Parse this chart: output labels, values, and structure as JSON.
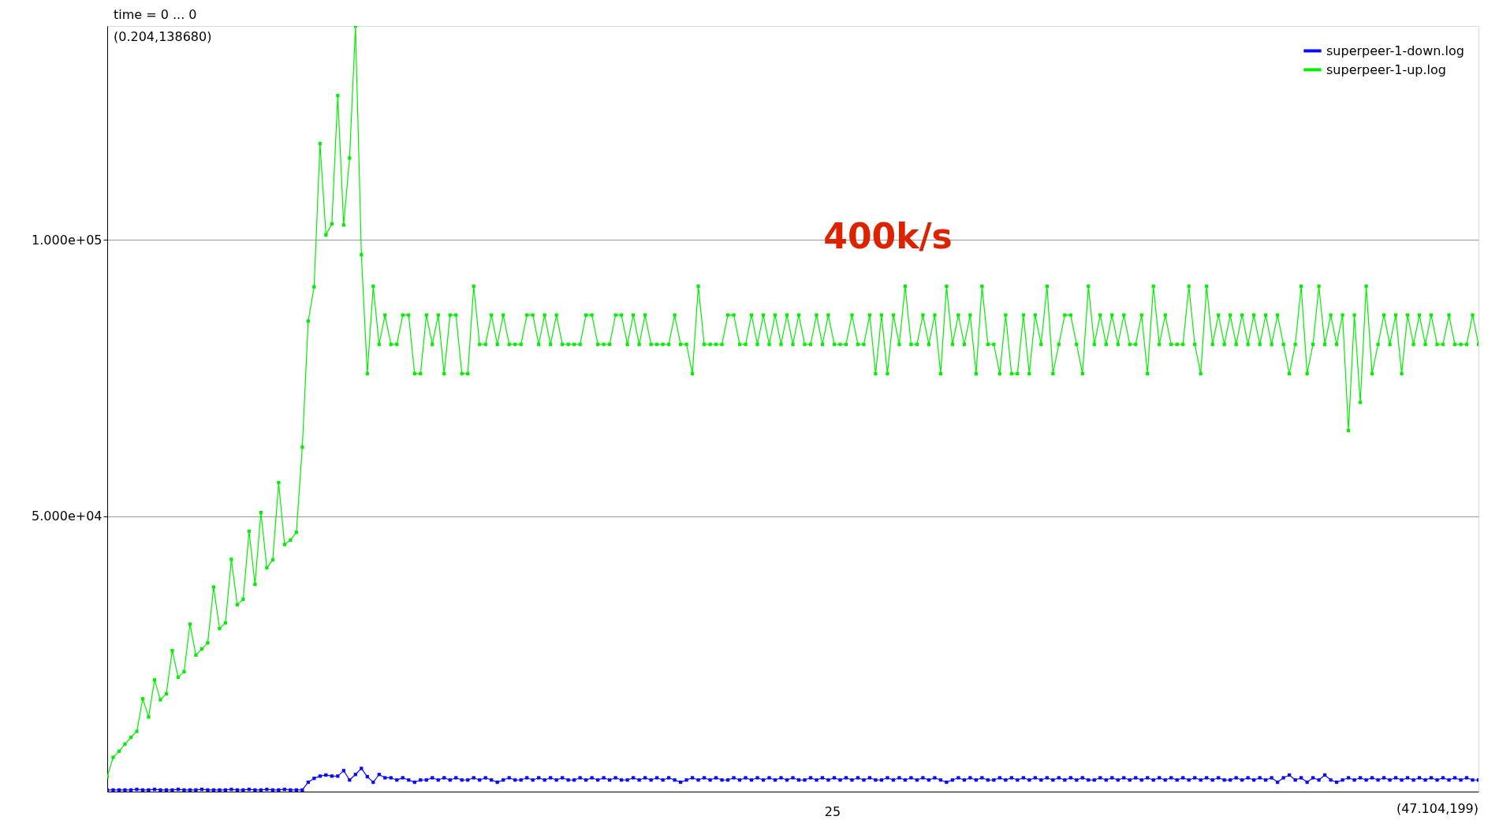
{
  "chart_data": {
    "type": "line",
    "annotations": [
      "time = 0 ... 0",
      "(0.204,138680)",
      "(47.104,199)",
      "400k/s",
      "25"
    ],
    "ylim": [
      199,
      138680
    ],
    "yticks": [
      {
        "value": 50000,
        "label": "5.000e+04"
      },
      {
        "value": 100000,
        "label": "1.000e+05"
      }
    ],
    "grid": "y",
    "legend": "top right",
    "marker": "square",
    "line_style": "solid",
    "categories": [
      null,
      null,
      null,
      null,
      null,
      null,
      null,
      null,
      null,
      null,
      null,
      null,
      null,
      null,
      null,
      null,
      null,
      null,
      null,
      null,
      null,
      null,
      null,
      null,
      null,
      null,
      null,
      null,
      null,
      null,
      null,
      null,
      null,
      null,
      null,
      null,
      null,
      null,
      null,
      null,
      null,
      null,
      null,
      null,
      null,
      null,
      null,
      null,
      null,
      null,
      null,
      null,
      null,
      null,
      null,
      null,
      null,
      null,
      null,
      null,
      null,
      null,
      null,
      null,
      null,
      null,
      null,
      null,
      null,
      null,
      null,
      null,
      null,
      null,
      null,
      null,
      null,
      null,
      null,
      null,
      null,
      null,
      null,
      null,
      null,
      null,
      null,
      null,
      null,
      null,
      null,
      null,
      null,
      null,
      null,
      null,
      null,
      null,
      null,
      null,
      null,
      null,
      null,
      null,
      null,
      null,
      null,
      null,
      null,
      null,
      null,
      null,
      null,
      null,
      null,
      null,
      null,
      null,
      null,
      null,
      null,
      null,
      null,
      null,
      null,
      null,
      null,
      null,
      null,
      null,
      null,
      null,
      null,
      null,
      null,
      null,
      null,
      null,
      null,
      null,
      null,
      null,
      null,
      null,
      null,
      null,
      null,
      null,
      null,
      null,
      null,
      null,
      null,
      null,
      null,
      null,
      null,
      null,
      null,
      null,
      null,
      null,
      null,
      null,
      null,
      null,
      null,
      null,
      null,
      null,
      null,
      null,
      null,
      null,
      null,
      null,
      null,
      null,
      null,
      null,
      null,
      null,
      null,
      null,
      null,
      null,
      null,
      null,
      null,
      null,
      null,
      null,
      null,
      null,
      null,
      null,
      null,
      null,
      null,
      null,
      null,
      null,
      null,
      null,
      null,
      null,
      null,
      null,
      null,
      null,
      null,
      null,
      null,
      null,
      null,
      null,
      null,
      null,
      null,
      null,
      null,
      null,
      null,
      null,
      null,
      null,
      null,
      null,
      null,
      null,
      null,
      null,
      null
    ],
    "series": [
      {
        "name": "superpeer-1-down.log",
        "color": "#0a0aff",
        "values": [
          500,
          500,
          500,
          500,
          500,
          600,
          500,
          500,
          600,
          500,
          500,
          500,
          600,
          500,
          500,
          500,
          600,
          500,
          500,
          500,
          500,
          600,
          500,
          500,
          600,
          500,
          500,
          600,
          500,
          500,
          600,
          500,
          500,
          500,
          1900,
          2600,
          3000,
          3200,
          3000,
          3000,
          4000,
          2300,
          3300,
          4400,
          2900,
          1900,
          3300,
          2700,
          2700,
          2300,
          2700,
          2300,
          1900,
          2300,
          2300,
          2700,
          2300,
          2700,
          2300,
          2700,
          2300,
          2300,
          2700,
          2300,
          2700,
          2300,
          1900,
          2300,
          2700,
          2300,
          2300,
          2700,
          2300,
          2700,
          2300,
          2700,
          2300,
          2700,
          2300,
          2300,
          2700,
          2300,
          2700,
          2300,
          2700,
          2300,
          2700,
          2300,
          2300,
          2700,
          2300,
          2700,
          2300,
          2700,
          2300,
          2700,
          2300,
          1900,
          2300,
          2700,
          2300,
          2700,
          2300,
          2700,
          2300,
          2300,
          2700,
          2300,
          2700,
          2300,
          2700,
          2300,
          2700,
          2300,
          2700,
          2300,
          2700,
          2300,
          2300,
          2700,
          2300,
          2700,
          2300,
          2700,
          2300,
          2700,
          2300,
          2700,
          2300,
          2700,
          2300,
          2300,
          2700,
          2300,
          2700,
          2300,
          2700,
          2300,
          2700,
          2300,
          2700,
          2300,
          1900,
          2300,
          2700,
          2300,
          2700,
          2300,
          2700,
          2300,
          2300,
          2700,
          2300,
          2700,
          2300,
          2700,
          2300,
          2700,
          2300,
          2700,
          2300,
          2700,
          2300,
          2700,
          2300,
          2700,
          2300,
          2300,
          2700,
          2300,
          2700,
          2300,
          2700,
          2300,
          2700,
          2300,
          2700,
          2300,
          2700,
          2300,
          2700,
          2300,
          2700,
          2300,
          2700,
          2300,
          2700,
          2300,
          2700,
          2300,
          2300,
          2700,
          2300,
          2700,
          2300,
          2700,
          2300,
          2700,
          1900,
          2700,
          3200,
          2300,
          2700,
          1900,
          2700,
          2300,
          3200,
          2300,
          1900,
          2300,
          2700,
          2300,
          2700,
          2300,
          2700,
          2300,
          2700,
          2300,
          2700,
          2300,
          2700,
          2300,
          2700,
          2300,
          2700,
          2300,
          2700,
          2300,
          2700,
          2300,
          2700,
          2300,
          2300
        ]
      },
      {
        "name": "superpeer-1-up.log",
        "color": "#00f000",
        "values": [
          2900,
          6400,
          7500,
          8800,
          10000,
          11100,
          17000,
          13700,
          20400,
          16800,
          17900,
          25700,
          20900,
          21900,
          30500,
          24900,
          26000,
          27100,
          37200,
          29700,
          30700,
          42200,
          34000,
          35000,
          47300,
          37700,
          50700,
          40700,
          42100,
          56100,
          44900,
          45700,
          47100,
          62500,
          85300,
          91500,
          117400,
          100900,
          102900,
          126100,
          102700,
          114800,
          138680,
          97300,
          75800,
          91600,
          81100,
          86400,
          81100,
          81100,
          86400,
          86400,
          75800,
          75800,
          86400,
          81100,
          86400,
          75800,
          86400,
          86400,
          75800,
          75800,
          91600,
          81100,
          81100,
          86400,
          81100,
          86400,
          81100,
          81100,
          81100,
          86400,
          86400,
          81100,
          86400,
          81100,
          86400,
          81100,
          81100,
          81100,
          81100,
          86400,
          86400,
          81100,
          81100,
          81100,
          86400,
          86400,
          81100,
          86400,
          81100,
          86400,
          81100,
          81100,
          81100,
          81100,
          86400,
          81100,
          81100,
          75800,
          91600,
          81100,
          81100,
          81100,
          81100,
          86400,
          86400,
          81100,
          81100,
          86400,
          81100,
          86400,
          81100,
          86400,
          81100,
          86400,
          81100,
          86400,
          81100,
          81100,
          86400,
          81100,
          86400,
          81100,
          81100,
          81100,
          86400,
          81100,
          81100,
          86400,
          75800,
          86400,
          75800,
          86400,
          81100,
          91600,
          81100,
          81100,
          86400,
          81100,
          86400,
          75800,
          91600,
          81100,
          86400,
          81100,
          86400,
          75800,
          91600,
          81100,
          81100,
          75800,
          86400,
          75800,
          75800,
          86400,
          75800,
          86400,
          81100,
          91600,
          75800,
          81100,
          86400,
          86400,
          81100,
          75800,
          91600,
          81100,
          86400,
          81100,
          86400,
          81100,
          86400,
          81100,
          81100,
          86400,
          75800,
          91600,
          81100,
          86400,
          81100,
          81100,
          81100,
          91600,
          81100,
          75800,
          91600,
          81100,
          86400,
          81100,
          86400,
          81100,
          86400,
          81100,
          86400,
          81100,
          86400,
          81100,
          86400,
          81100,
          75800,
          81100,
          91600,
          75800,
          81100,
          91600,
          81100,
          86400,
          81100,
          86400,
          65500,
          86400,
          70600,
          91600,
          75800,
          81100,
          86400,
          81100,
          86400,
          75800,
          86400,
          81100,
          86400,
          81100,
          86400,
          81100,
          81100,
          86400,
          81100,
          81100,
          81100,
          86400,
          81100
        ]
      }
    ]
  }
}
